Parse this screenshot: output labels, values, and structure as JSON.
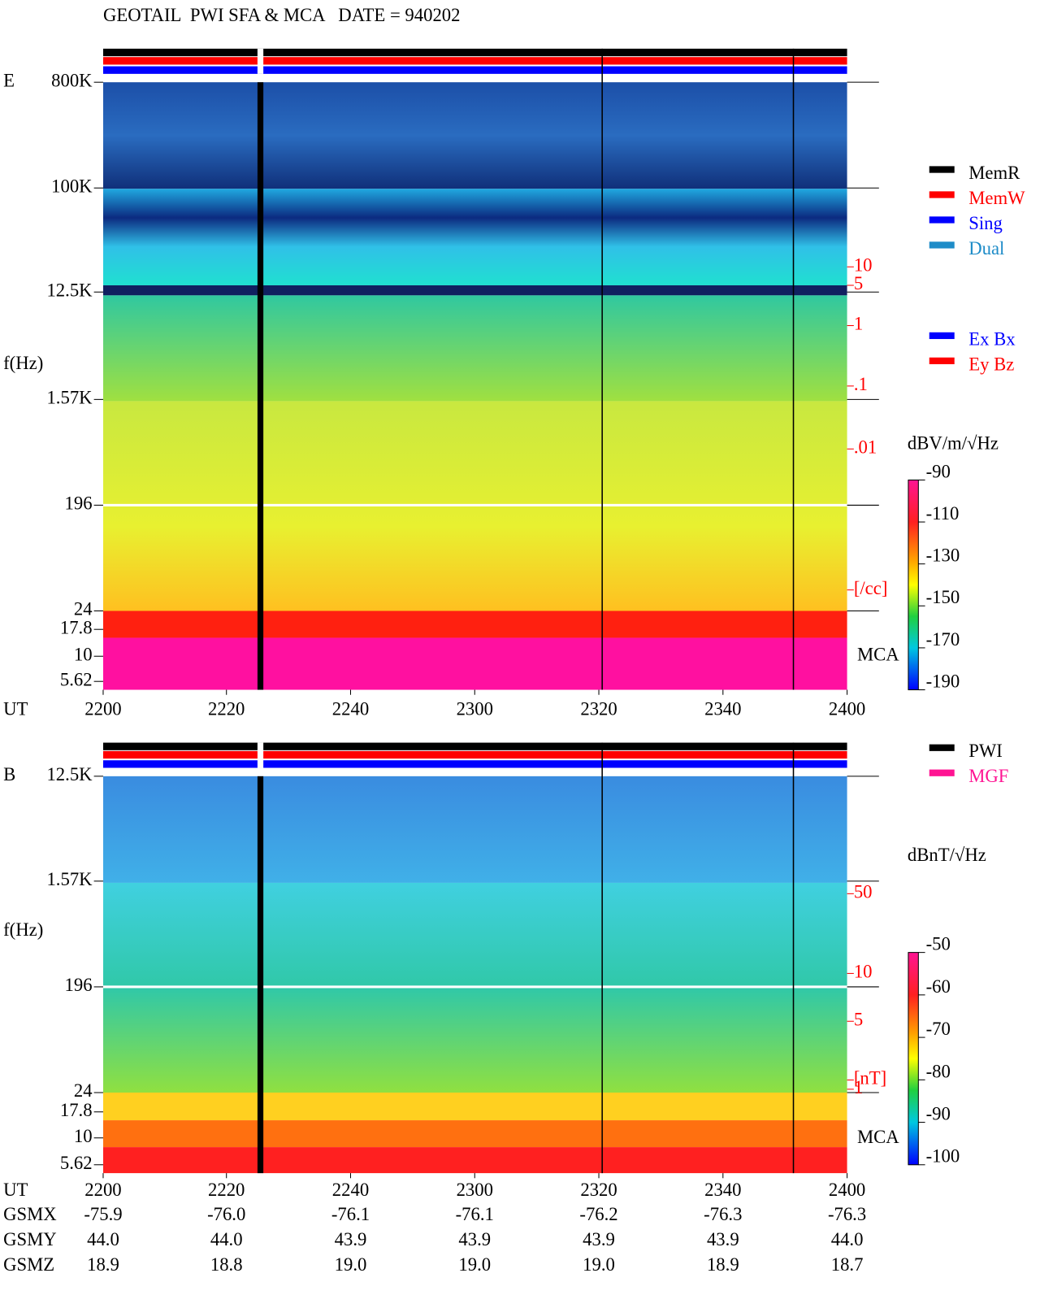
{
  "header": {
    "title": "GEOTAIL  PWI SFA & MCA   DATE = 940202"
  },
  "panels": [
    {
      "label": "E",
      "y_axis_title": "f(Hz)",
      "x_axis_title": "UT",
      "y_labels": [
        "800K",
        "100K",
        "12.5K",
        "1.57K",
        "196",
        "24",
        "17.8",
        "10",
        "5.62"
      ],
      "x_labels": [
        "2200",
        "2220",
        "2240",
        "2300",
        "2320",
        "2340",
        "2400"
      ],
      "right_labels": [
        "10",
        "5",
        "1",
        ".1",
        ".01",
        "[/cc]"
      ],
      "side_label": "MCA",
      "legend": [
        {
          "name": "MemR",
          "color": "#000000"
        },
        {
          "name": "MemW",
          "color": "#ff0000"
        },
        {
          "name": "Sing",
          "color": "#0000ff"
        },
        {
          "name": "Dual",
          "color": "#1e8cc8"
        }
      ],
      "legend2": [
        {
          "name": "Ex Bx",
          "color": "#0000ff"
        },
        {
          "name": "Ey Bz",
          "color": "#ff0000"
        }
      ],
      "unit": "dBV/m/√Hz",
      "colorbar_labels": [
        "-90",
        "-110",
        "-130",
        "-150",
        "-170",
        "-190"
      ]
    },
    {
      "label": "B",
      "y_axis_title": "f(Hz)",
      "x_axis_title": "UT",
      "y_labels": [
        "12.5K",
        "1.57K",
        "196",
        "24",
        "17.8",
        "10",
        "5.62"
      ],
      "x_labels": [
        "2200",
        "2220",
        "2240",
        "2300",
        "2320",
        "2340",
        "2400"
      ],
      "right_labels": [
        "50",
        "10",
        "5",
        "1",
        "[nT]"
      ],
      "side_label": "MCA",
      "legend": [
        {
          "name": "PWI",
          "color": "#000000"
        },
        {
          "name": "MGF",
          "color": "#ff1493"
        }
      ],
      "legend2": [],
      "unit": "dBnT/√Hz",
      "colorbar_labels": [
        "-50",
        "-60",
        "-70",
        "-80",
        "-90",
        "-100"
      ]
    }
  ],
  "footer": {
    "rows": [
      {
        "name": "GSMX",
        "values": [
          "-75.9",
          "-76.0",
          "-76.1",
          "-76.1",
          "-76.2",
          "-76.3",
          "-76.3"
        ]
      },
      {
        "name": "GSMY",
        "values": [
          "44.0",
          "44.0",
          "43.9",
          "43.9",
          "43.9",
          "43.9",
          "44.0"
        ]
      },
      {
        "name": "GSMZ",
        "values": [
          "18.9",
          "18.8",
          "19.0",
          "19.0",
          "19.0",
          "18.9",
          "18.7"
        ]
      }
    ]
  }
}
